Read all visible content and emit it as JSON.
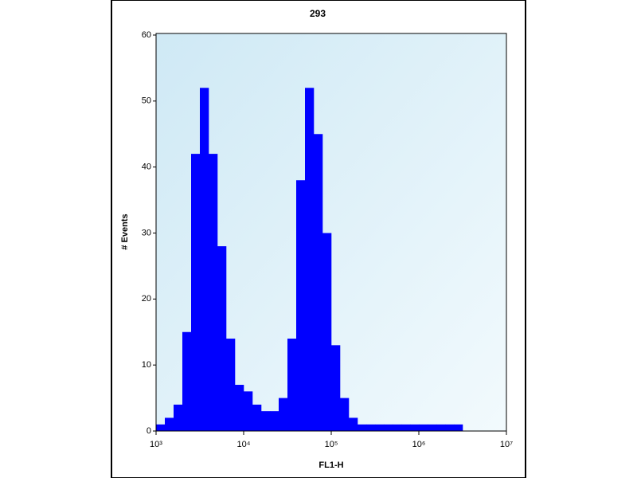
{
  "chart_data": {
    "type": "histogram",
    "title": "293",
    "x_label": "FL1-H",
    "y_label": "# Events",
    "x_scale": "log",
    "color": "#0000ff",
    "bins": [
      1000,
      1259,
      1585,
      1995,
      2512,
      3162,
      3981,
      5012,
      6310,
      7943,
      10000,
      12589,
      15849,
      19953,
      25119,
      31623,
      39811,
      50119,
      63096,
      79433,
      100000,
      125893,
      158489,
      199526,
      251189,
      316228,
      398107,
      501187,
      630957,
      794328,
      1000000,
      1258925,
      1584893,
      1995262,
      2511886,
      3162278,
      3981072,
      5011872,
      6309573,
      7943282,
      10000000
    ],
    "values": [
      1,
      2,
      4,
      15,
      42,
      52,
      42,
      28,
      14,
      7,
      6,
      4,
      3,
      3,
      5,
      14,
      38,
      52,
      45,
      30,
      13,
      5,
      2,
      1,
      1,
      1,
      1,
      1,
      1,
      1,
      1,
      1,
      1,
      1,
      1,
      0,
      0,
      0,
      0,
      0
    ],
    "xlim": [
      1000,
      10000000
    ],
    "xticks": [
      {
        "value": 1000,
        "label": "10³"
      },
      {
        "value": 10000,
        "label": "10⁴"
      },
      {
        "value": 100000,
        "label": "10⁵"
      },
      {
        "value": 1000000,
        "label": "10⁶"
      },
      {
        "value": 10000000,
        "label": "10⁷"
      }
    ],
    "ylim": [
      0,
      60
    ],
    "yticks": [
      0,
      10,
      20,
      30,
      40,
      50,
      60
    ]
  }
}
